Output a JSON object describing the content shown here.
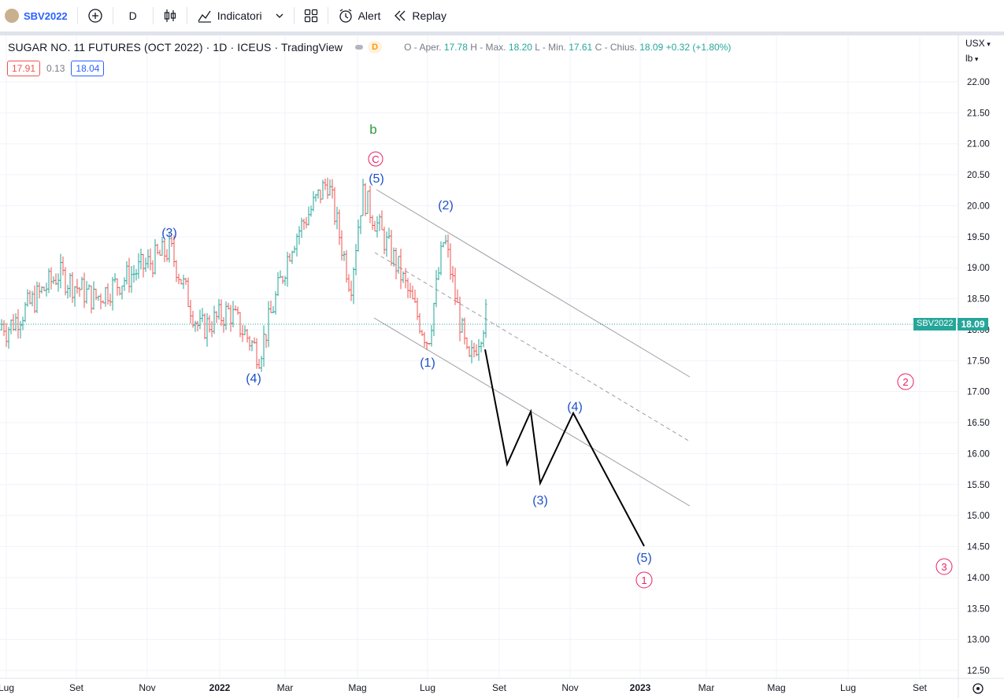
{
  "toolbar": {
    "symbol": "SBV2022",
    "interval": "D",
    "indicators_label": "Indicatori",
    "alert_label": "Alert",
    "replay_label": "Replay"
  },
  "legend": {
    "title": "SUGAR NO. 11 FUTURES (OCT 2022) · 1D · ICEUS · TradingView",
    "badge": "D",
    "ohlc_prefix_o": "O - Aper.",
    "open": "17.78",
    "ohlc_prefix_h": "H - Max.",
    "high": "18.20",
    "ohlc_prefix_l": "L - Min.",
    "low": "17.61",
    "ohlc_prefix_c": "C - Chius.",
    "close": "18.09",
    "change": "+0.32 (+1.80%)"
  },
  "quote": {
    "sell": "17.91",
    "spread": "0.13",
    "buy": "18.04"
  },
  "price_scale": {
    "currency": "USX",
    "unit": "lb",
    "ticks": [
      "22.00",
      "21.50",
      "21.00",
      "20.50",
      "20.00",
      "19.50",
      "19.00",
      "18.50",
      "18.00",
      "17.50",
      "17.00",
      "16.50",
      "16.00",
      "15.50",
      "15.00",
      "14.50",
      "14.00",
      "13.50",
      "13.00",
      "12.50"
    ],
    "last_symbol": "SBV2022",
    "last_price": "18.09"
  },
  "time_axis": {
    "labels": [
      "Lug",
      "Set",
      "Nov",
      "2022",
      "Mar",
      "Mag",
      "Lug",
      "Set",
      "Nov",
      "2023",
      "Mar",
      "Mag",
      "Lug",
      "Set"
    ]
  },
  "wave_labels": {
    "b": "b",
    "c_circled": "C",
    "w5_top": "(5)",
    "w2": "(2)",
    "w3_left": "(3)",
    "w4_left": "(4)",
    "w1": "(1)",
    "w4_proj": "(4)",
    "w3_proj": "(3)",
    "w5_proj": "(5)",
    "circ1": "1",
    "circ2": "2",
    "circ3": "3"
  },
  "colors": {
    "up": "#26a69a",
    "down": "#ef5350",
    "wave_blue": "#1e4fc9",
    "wave_pink": "#e91e63",
    "wave_green": "#2e9c3a",
    "projection": "#000000",
    "channel": "#9e9e9e"
  },
  "chart_data": {
    "type": "ohlc",
    "instrument": "SUGAR NO. 11 FUTURES (OCT 2022)",
    "timeframe": "1D",
    "ylim": [
      12.25,
      22.3
    ],
    "last_close": 18.09,
    "price_path_approx": [
      {
        "date": "2021-07-01",
        "close": 18.0
      },
      {
        "date": "2021-08-15",
        "close": 18.9
      },
      {
        "date": "2021-09-15",
        "close": 18.5
      },
      {
        "date": "2021-11-20",
        "close": 19.3
      },
      {
        "date": "2021-12-15",
        "close": 18.0
      },
      {
        "date": "2022-01-10",
        "close": 18.3
      },
      {
        "date": "2022-02-05",
        "close": 17.6
      },
      {
        "date": "2022-03-05",
        "close": 19.4
      },
      {
        "date": "2022-04-05",
        "close": 20.4
      },
      {
        "date": "2022-04-25",
        "close": 18.7
      },
      {
        "date": "2022-05-05",
        "close": 20.2
      },
      {
        "date": "2022-06-05",
        "close": 19.0
      },
      {
        "date": "2022-07-01",
        "close": 17.8
      },
      {
        "date": "2022-07-15",
        "close": 19.5
      },
      {
        "date": "2022-08-05",
        "close": 17.4
      },
      {
        "date": "2022-08-25",
        "close": 18.5
      },
      {
        "date": "2022-09-01",
        "close": 18.09
      }
    ],
    "projection_path": [
      {
        "date": "2022-09-01",
        "price": 17.65,
        "label": ""
      },
      {
        "date": "2022-09-20",
        "price": 15.85,
        "label": ""
      },
      {
        "date": "2022-10-10",
        "price": 16.65,
        "label": ""
      },
      {
        "date": "2022-10-25",
        "price": 15.55,
        "label": "(3)"
      },
      {
        "date": "2022-11-05",
        "price": 16.65,
        "label": "(4)"
      },
      {
        "date": "2023-01-01",
        "price": 14.5,
        "label": "(5)"
      }
    ]
  }
}
